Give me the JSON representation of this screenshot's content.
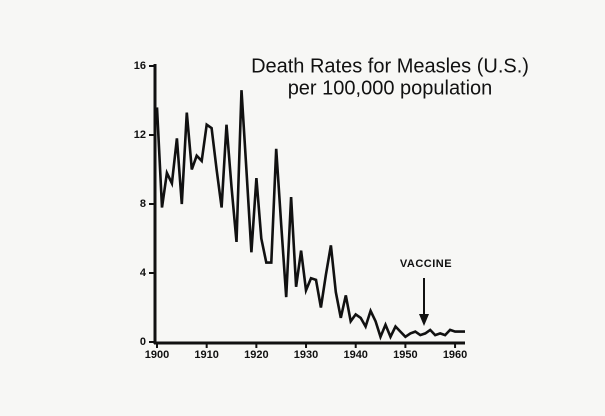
{
  "chart_data": {
    "type": "line",
    "title": "Death Rates for Measles (U.S.)",
    "subtitle": "per 100,000 population",
    "annotation": "VACCINE",
    "x": [
      1900,
      1901,
      1902,
      1903,
      1904,
      1905,
      1906,
      1907,
      1908,
      1909,
      1910,
      1911,
      1912,
      1913,
      1914,
      1915,
      1916,
      1917,
      1918,
      1919,
      1920,
      1921,
      1922,
      1923,
      1924,
      1925,
      1926,
      1927,
      1928,
      1929,
      1930,
      1931,
      1932,
      1933,
      1934,
      1935,
      1936,
      1937,
      1938,
      1939,
      1940,
      1941,
      1942,
      1943,
      1944,
      1945,
      1946,
      1947,
      1948,
      1949,
      1950,
      1951,
      1952,
      1953,
      1954,
      1955,
      1956,
      1957,
      1958,
      1959,
      1960,
      1961,
      1962
    ],
    "values": [
      13.6,
      7.8,
      9.8,
      9.2,
      11.8,
      8.0,
      13.3,
      10.0,
      10.8,
      10.5,
      12.6,
      12.4,
      10.0,
      7.8,
      12.6,
      9.0,
      5.8,
      14.6,
      10.0,
      5.2,
      9.5,
      6.0,
      4.6,
      4.6,
      11.2,
      6.8,
      2.6,
      8.4,
      3.2,
      5.3,
      3.0,
      3.7,
      3.6,
      2.0,
      3.9,
      5.6,
      2.9,
      1.4,
      2.7,
      1.2,
      1.6,
      1.4,
      0.9,
      1.8,
      1.2,
      0.3,
      1.0,
      0.3,
      0.9,
      0.6,
      0.3,
      0.5,
      0.6,
      0.4,
      0.5,
      0.7,
      0.4,
      0.5,
      0.4,
      0.7,
      0.6,
      0.6,
      0.6
    ],
    "color": "#111111",
    "xlim": [
      1900,
      1962
    ],
    "xticks": [
      1900,
      1910,
      1920,
      1930,
      1940,
      1950,
      1960
    ],
    "ylim": [
      0,
      16
    ],
    "yticks": [
      0,
      4,
      8,
      12,
      16
    ]
  }
}
